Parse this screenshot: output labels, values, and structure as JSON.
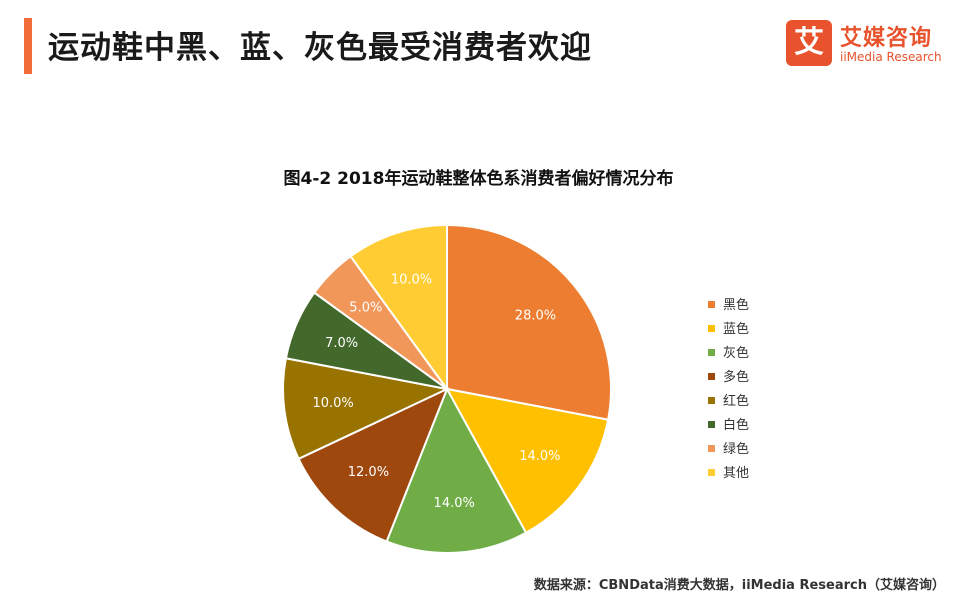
{
  "header": {
    "title": "运动鞋中黑、蓝、灰色最受消费者欢迎"
  },
  "logo": {
    "mark": "艾",
    "cn": "艾媒咨询",
    "en": "iiMedia Research"
  },
  "chart_data": {
    "type": "pie",
    "title": "图4-2 2018年运动鞋整体色系消费者偏好情况分布",
    "categories": [
      "黑色",
      "蓝色",
      "灰色",
      "多色",
      "红色",
      "白色",
      "绿色",
      "其他"
    ],
    "values": [
      28.0,
      14.0,
      14.0,
      12.0,
      10.0,
      7.0,
      5.0,
      10.0
    ],
    "labels": [
      "28.0%",
      "14.0%",
      "14.0%",
      "12.0%",
      "10.0%",
      "7.0%",
      "5.0%",
      "10.0%"
    ],
    "colors": [
      "#ed7d31",
      "#ffc000",
      "#70ad47",
      "#9e480e",
      "#997300",
      "#43682b",
      "#f1975a",
      "#ffcd33"
    ],
    "legend_position": "right"
  },
  "footer": {
    "source": "数据来源：CBNData消费大数据，iiMedia Research（艾媒咨询）"
  }
}
